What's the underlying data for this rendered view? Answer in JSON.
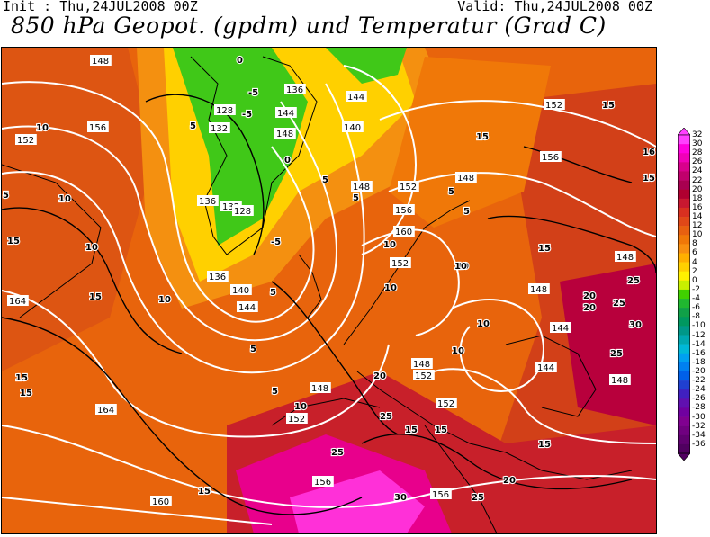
{
  "header": {
    "init": "Init : Thu,24JUL2008 00Z",
    "valid": "Valid: Thu,24JUL2008 00Z",
    "title": "850 hPa Geopot. (gpdm) und Temperatur (Grad C)"
  },
  "colorbar": {
    "labels": [
      "32",
      "30",
      "28",
      "26",
      "24",
      "22",
      "20",
      "18",
      "16",
      "14",
      "12",
      "10",
      "8",
      "6",
      "4",
      "2",
      "0",
      "-2",
      "-4",
      "-6",
      "-8",
      "-10",
      "-12",
      "-14",
      "-16",
      "-18",
      "-20",
      "-22",
      "-24",
      "-26",
      "-28",
      "-30",
      "-32",
      "-34",
      "-36"
    ],
    "colors": [
      "#ff40ff",
      "#ff00e0",
      "#f000b8",
      "#d8008c",
      "#c0006c",
      "#a80050",
      "#b00030",
      "#c81830",
      "#d83020",
      "#e04818",
      "#e86010",
      "#f07808",
      "#f89010",
      "#ffb000",
      "#ffd000",
      "#fff000",
      "#c8f000",
      "#40d000",
      "#20b830",
      "#10a048",
      "#009860",
      "#009888",
      "#00a8b0",
      "#00b8d8",
      "#00a0f0",
      "#0080f0",
      "#0060e8",
      "#2040d0",
      "#4020c0",
      "#6010b0",
      "#7000a0",
      "#800090",
      "#700080",
      "#600070",
      "#500060"
    ],
    "colors_meaning": "temperature shading from 32 (top) to -36 (bottom)"
  },
  "map": {
    "geopotential_labels": [
      {
        "t": "148"
      },
      {
        "t": "156"
      },
      {
        "t": "152"
      },
      {
        "t": "128"
      },
      {
        "t": "132"
      },
      {
        "t": "136"
      },
      {
        "t": "144"
      },
      {
        "t": "148"
      },
      {
        "t": "144"
      },
      {
        "t": "140"
      },
      {
        "t": "148"
      },
      {
        "t": "148"
      },
      {
        "t": "152"
      },
      {
        "t": "136"
      },
      {
        "t": "132"
      },
      {
        "t": "128"
      },
      {
        "t": "136"
      },
      {
        "t": "140"
      },
      {
        "t": "144"
      },
      {
        "t": "152"
      },
      {
        "t": "156"
      },
      {
        "t": "160"
      },
      {
        "t": "156"
      },
      {
        "t": "152"
      },
      {
        "t": "148"
      },
      {
        "t": "144"
      },
      {
        "t": "144"
      },
      {
        "t": "148"
      },
      {
        "t": "152"
      },
      {
        "t": "148"
      },
      {
        "t": "152"
      },
      {
        "t": "164"
      },
      {
        "t": "164"
      },
      {
        "t": "160"
      },
      {
        "t": "156"
      },
      {
        "t": "156"
      },
      {
        "t": "148"
      },
      {
        "t": "148"
      },
      {
        "t": "152"
      }
    ],
    "temperature_labels": [
      {
        "t": "10"
      },
      {
        "t": "5"
      },
      {
        "t": "10"
      },
      {
        "t": "10"
      },
      {
        "t": "5"
      },
      {
        "t": "10"
      },
      {
        "t": "15"
      },
      {
        "t": "15"
      },
      {
        "t": "10"
      },
      {
        "t": "15"
      },
      {
        "t": "5"
      },
      {
        "t": "15"
      },
      {
        "t": "16"
      },
      {
        "t": "15"
      },
      {
        "t": "0"
      },
      {
        "t": "-5"
      },
      {
        "t": "-5"
      },
      {
        "t": "0"
      },
      {
        "t": "5"
      },
      {
        "t": "-5"
      },
      {
        "t": "5"
      },
      {
        "t": "5"
      },
      {
        "t": "10"
      },
      {
        "t": "10"
      },
      {
        "t": "15"
      },
      {
        "t": "10"
      },
      {
        "t": "10"
      },
      {
        "t": "20"
      },
      {
        "t": "25"
      },
      {
        "t": "25"
      },
      {
        "t": "30"
      },
      {
        "t": "20"
      },
      {
        "t": "15"
      },
      {
        "t": "15"
      },
      {
        "t": "20"
      },
      {
        "t": "25"
      },
      {
        "t": "30"
      },
      {
        "t": "25"
      },
      {
        "t": "25"
      },
      {
        "t": "25"
      },
      {
        "t": "15"
      },
      {
        "t": "15"
      },
      {
        "t": "20"
      },
      {
        "t": "15"
      },
      {
        "t": "15"
      },
      {
        "t": "5"
      },
      {
        "t": "5"
      },
      {
        "t": "10"
      },
      {
        "t": "10"
      },
      {
        "t": "5"
      }
    ]
  }
}
